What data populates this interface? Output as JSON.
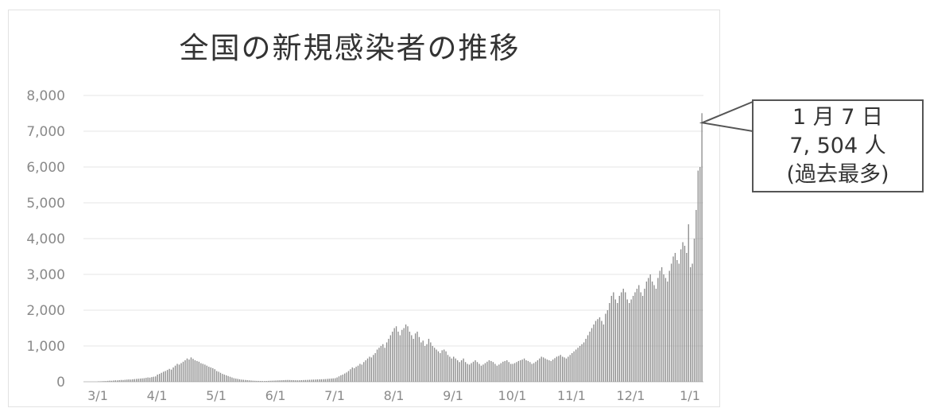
{
  "chart_data": {
    "type": "bar",
    "title": "全国の新規感染者の推移",
    "xlabel": "",
    "ylabel": "",
    "ylim": [
      0,
      8000
    ],
    "yticks": [
      0,
      1000,
      2000,
      3000,
      4000,
      5000,
      6000,
      7000,
      8000
    ],
    "ytick_labels": [
      "0",
      "1,000",
      "2,000",
      "3,000",
      "4,000",
      "5,000",
      "6,000",
      "7,000",
      "8,000"
    ],
    "xticks": [
      "3/1",
      "4/1",
      "5/1",
      "6/1",
      "7/1",
      "8/1",
      "9/1",
      "10/1",
      "11/1",
      "12/1",
      "1/1"
    ],
    "grid": true,
    "bar_color": "#8c8c8c",
    "daily_cases_by_month": [
      {
        "month": "3/1",
        "values": [
          10,
          12,
          15,
          18,
          20,
          25,
          30,
          28,
          35,
          40,
          38,
          45,
          50,
          48,
          55,
          60,
          65,
          62,
          70,
          75,
          80,
          85,
          90,
          95,
          100,
          110,
          120,
          115,
          130,
          140,
          150
        ]
      },
      {
        "month": "4/1",
        "values": [
          200,
          220,
          250,
          280,
          300,
          330,
          360,
          340,
          400,
          450,
          500,
          480,
          520,
          560,
          600,
          650,
          620,
          680,
          640,
          600,
          580,
          560,
          520,
          500,
          480,
          450,
          420,
          400,
          380,
          350
        ]
      },
      {
        "month": "5/1",
        "values": [
          300,
          280,
          250,
          220,
          200,
          180,
          160,
          140,
          120,
          100,
          90,
          80,
          70,
          60,
          55,
          50,
          45,
          40,
          35,
          30,
          28,
          25,
          24,
          22,
          20,
          20,
          22,
          25,
          28,
          30,
          32
        ]
      },
      {
        "month": "6/1",
        "values": [
          35,
          38,
          40,
          42,
          45,
          48,
          50,
          48,
          46,
          44,
          42,
          40,
          42,
          45,
          48,
          50,
          52,
          55,
          58,
          60,
          62,
          65,
          68,
          70,
          72,
          75,
          80,
          85,
          90,
          95
        ]
      },
      {
        "month": "7/1",
        "values": [
          100,
          120,
          150,
          180,
          200,
          230,
          260,
          300,
          350,
          400,
          380,
          420,
          450,
          500,
          480,
          550,
          600,
          650,
          700,
          680,
          750,
          800,
          900,
          950,
          1000,
          1050,
          950,
          1100,
          1200,
          1300,
          1400
        ]
      },
      {
        "month": "8/1",
        "values": [
          1500,
          1550,
          1400,
          1300,
          1450,
          1500,
          1600,
          1550,
          1400,
          1300,
          1200,
          1350,
          1400,
          1250,
          1100,
          1150,
          1000,
          1050,
          1200,
          1100,
          1000,
          950,
          900,
          850,
          800,
          880,
          900,
          850,
          750,
          700,
          650
        ]
      },
      {
        "month": "9/1",
        "values": [
          700,
          650,
          600,
          550,
          600,
          650,
          550,
          500,
          480,
          520,
          560,
          600,
          550,
          500,
          450,
          480,
          520,
          560,
          600,
          580,
          550,
          500,
          450,
          480,
          520,
          560,
          580,
          600,
          550,
          500
        ]
      },
      {
        "month": "10/1",
        "values": [
          500,
          520,
          550,
          580,
          600,
          620,
          650,
          600,
          580,
          550,
          500,
          520,
          560,
          600,
          650,
          700,
          680,
          650,
          620,
          600,
          580,
          620,
          660,
          700,
          720,
          750,
          700,
          680,
          650,
          700,
          750
        ]
      },
      {
        "month": "11/1",
        "values": [
          800,
          850,
          900,
          950,
          1000,
          1050,
          1100,
          1200,
          1300,
          1400,
          1500,
          1600,
          1700,
          1750,
          1800,
          1700,
          1600,
          1900,
          2000,
          2200,
          2400,
          2500,
          2300,
          2200,
          2400,
          2500,
          2600,
          2500,
          2300,
          2200
        ]
      },
      {
        "month": "12/1",
        "values": [
          2300,
          2400,
          2500,
          2600,
          2700,
          2500,
          2400,
          2600,
          2800,
          2900,
          3000,
          2800,
          2700,
          2600,
          2900,
          3100,
          3200,
          3000,
          2900,
          2800,
          3100,
          3300,
          3500,
          3600,
          3400,
          3300,
          3700,
          3900,
          3800,
          3600,
          4400
        ]
      },
      {
        "month": "1/1",
        "values": [
          3200,
          3300,
          4000,
          4800,
          5900,
          6000,
          7504
        ]
      }
    ],
    "annotation": {
      "lines": [
        "1 月 7 日",
        "7, 504 人",
        "(過去最多)"
      ],
      "x": "1/7",
      "y": 7504
    }
  }
}
